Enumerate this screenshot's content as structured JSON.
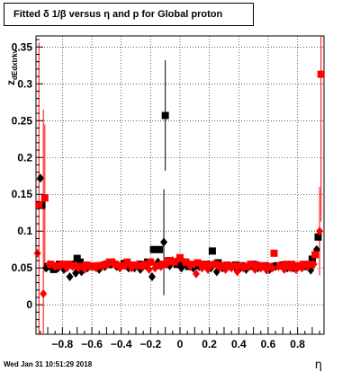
{
  "title": "Fitted δ 1/β versus η and p for Global proton",
  "footer_date": "Wed Jan 31 10:51:29 2018",
  "chart_data": {
    "type": "scatter",
    "xlabel": "η",
    "ylabel": "z",
    "ylabel_subscript": "dEdxtrkv",
    "xlim": [
      -0.98,
      0.98
    ],
    "ylim": [
      -0.04,
      0.365
    ],
    "xticks": [
      -0.8,
      -0.6,
      -0.4,
      -0.2,
      0,
      0.2,
      0.4,
      0.6,
      0.8
    ],
    "xtick_labels": [
      "−0.8",
      "−0.6",
      "−0.4",
      "−0.2",
      "0",
      "0.2",
      "0.4",
      "0.6",
      "0.8"
    ],
    "yticks": [
      0,
      0.05,
      0.1,
      0.15,
      0.2,
      0.25,
      0.3,
      0.35
    ],
    "ytick_labels": [
      "0",
      "0.05",
      "0.1",
      "0.15",
      "0.2",
      "0.25",
      "0.3",
      "0.35"
    ],
    "grid": true,
    "colors": {
      "black": "#000000",
      "red": "#ff0000"
    },
    "series": [
      {
        "marker": "square",
        "color": "#000000",
        "points": [
          [
            -0.94,
            0.135
          ],
          [
            -0.9,
            0.052
          ],
          [
            -0.86,
            0.048
          ],
          [
            -0.82,
            0.055
          ],
          [
            -0.78,
            0.052
          ],
          [
            -0.74,
            0.055
          ],
          [
            -0.7,
            0.063
          ],
          [
            -0.68,
            0.058
          ],
          [
            -0.62,
            0.052
          ],
          [
            -0.58,
            0.052
          ],
          [
            -0.54,
            0.053
          ],
          [
            -0.5,
            0.055
          ],
          [
            -0.46,
            0.055
          ],
          [
            -0.42,
            0.053
          ],
          [
            -0.38,
            0.056
          ],
          [
            -0.34,
            0.053
          ],
          [
            -0.3,
            0.053
          ],
          [
            -0.26,
            0.055
          ],
          [
            -0.22,
            0.058
          ],
          [
            -0.18,
            0.075
          ],
          [
            -0.14,
            0.075
          ],
          [
            -0.1,
            0.257
          ],
          [
            -0.06,
            0.058
          ],
          [
            -0.02,
            0.055
          ],
          [
            0.02,
            0.055
          ],
          [
            0.06,
            0.052
          ],
          [
            0.1,
            0.053
          ],
          [
            0.14,
            0.055
          ],
          [
            0.18,
            0.055
          ],
          [
            0.22,
            0.073
          ],
          [
            0.26,
            0.057
          ],
          [
            0.3,
            0.052
          ],
          [
            0.34,
            0.052
          ],
          [
            0.38,
            0.054
          ],
          [
            0.42,
            0.053
          ],
          [
            0.46,
            0.052
          ],
          [
            0.5,
            0.055
          ],
          [
            0.54,
            0.052
          ],
          [
            0.58,
            0.053
          ],
          [
            0.62,
            0.052
          ],
          [
            0.66,
            0.053
          ],
          [
            0.7,
            0.054
          ],
          [
            0.74,
            0.053
          ],
          [
            0.78,
            0.053
          ],
          [
            0.82,
            0.053
          ],
          [
            0.86,
            0.052
          ],
          [
            0.9,
            0.062
          ],
          [
            0.94,
            0.092
          ]
        ],
        "errors": [
          [
            -0.9,
            0.003
          ],
          [
            -0.1,
            0.075
          ]
        ]
      },
      {
        "marker": "diamond",
        "color": "#000000",
        "points": [
          [
            -0.95,
            0.172
          ],
          [
            -0.91,
            0.05
          ],
          [
            -0.87,
            0.052
          ],
          [
            -0.83,
            0.05
          ],
          [
            -0.79,
            0.048
          ],
          [
            -0.75,
            0.038
          ],
          [
            -0.71,
            0.043
          ],
          [
            -0.67,
            0.045
          ],
          [
            -0.63,
            0.05
          ],
          [
            -0.59,
            0.052
          ],
          [
            -0.55,
            0.048
          ],
          [
            -0.51,
            0.052
          ],
          [
            -0.47,
            0.055
          ],
          [
            -0.43,
            0.052
          ],
          [
            -0.39,
            0.055
          ],
          [
            -0.35,
            0.05
          ],
          [
            -0.31,
            0.05
          ],
          [
            -0.27,
            0.048
          ],
          [
            -0.23,
            0.053
          ],
          [
            -0.19,
            0.038
          ],
          [
            -0.15,
            0.058
          ],
          [
            -0.11,
            0.085
          ],
          [
            -0.07,
            0.053
          ],
          [
            -0.03,
            0.058
          ],
          [
            0.01,
            0.05
          ],
          [
            0.05,
            0.055
          ],
          [
            0.09,
            0.05
          ],
          [
            0.13,
            0.052
          ],
          [
            0.17,
            0.053
          ],
          [
            0.21,
            0.05
          ],
          [
            0.25,
            0.045
          ],
          [
            0.29,
            0.05
          ],
          [
            0.33,
            0.053
          ],
          [
            0.37,
            0.052
          ],
          [
            0.41,
            0.05
          ],
          [
            0.45,
            0.048
          ],
          [
            0.49,
            0.053
          ],
          [
            0.53,
            0.05
          ],
          [
            0.57,
            0.052
          ],
          [
            0.61,
            0.048
          ],
          [
            0.65,
            0.052
          ],
          [
            0.69,
            0.053
          ],
          [
            0.73,
            0.05
          ],
          [
            0.77,
            0.05
          ],
          [
            0.81,
            0.052
          ],
          [
            0.85,
            0.053
          ],
          [
            0.89,
            0.047
          ],
          [
            0.93,
            0.075
          ]
        ],
        "errors": [
          [
            -0.11,
            0.072
          ]
        ]
      },
      {
        "marker": "square",
        "color": "#ff0000",
        "points": [
          [
            -0.96,
            0.136
          ],
          [
            -0.92,
            0.145
          ],
          [
            -0.88,
            0.055
          ],
          [
            -0.84,
            0.053
          ],
          [
            -0.8,
            0.055
          ],
          [
            -0.76,
            0.055
          ],
          [
            -0.72,
            0.053
          ],
          [
            -0.68,
            0.052
          ],
          [
            -0.64,
            0.054
          ],
          [
            -0.6,
            0.052
          ],
          [
            -0.56,
            0.053
          ],
          [
            -0.52,
            0.054
          ],
          [
            -0.48,
            0.058
          ],
          [
            -0.44,
            0.055
          ],
          [
            -0.4,
            0.053
          ],
          [
            -0.36,
            0.058
          ],
          [
            -0.32,
            0.054
          ],
          [
            -0.28,
            0.053
          ],
          [
            -0.24,
            0.055
          ],
          [
            -0.2,
            0.058
          ],
          [
            -0.16,
            0.053
          ],
          [
            -0.12,
            0.055
          ],
          [
            -0.08,
            0.06
          ],
          [
            -0.04,
            0.058
          ],
          [
            0.0,
            0.064
          ],
          [
            0.04,
            0.058
          ],
          [
            0.08,
            0.055
          ],
          [
            0.12,
            0.057
          ],
          [
            0.16,
            0.055
          ],
          [
            0.2,
            0.054
          ],
          [
            0.24,
            0.055
          ],
          [
            0.28,
            0.053
          ],
          [
            0.32,
            0.054
          ],
          [
            0.36,
            0.053
          ],
          [
            0.4,
            0.053
          ],
          [
            0.44,
            0.052
          ],
          [
            0.48,
            0.055
          ],
          [
            0.52,
            0.054
          ],
          [
            0.56,
            0.053
          ],
          [
            0.6,
            0.052
          ],
          [
            0.64,
            0.07
          ],
          [
            0.68,
            0.053
          ],
          [
            0.72,
            0.055
          ],
          [
            0.76,
            0.055
          ],
          [
            0.8,
            0.053
          ],
          [
            0.84,
            0.055
          ],
          [
            0.88,
            0.055
          ],
          [
            0.92,
            0.068
          ],
          [
            0.96,
            0.313
          ]
        ],
        "errors": [
          [
            -0.96,
            0.22
          ],
          [
            -0.92,
            0.1
          ],
          [
            0.96,
            0.2
          ]
        ]
      },
      {
        "marker": "diamond",
        "color": "#ff0000",
        "points": [
          [
            -0.97,
            0.07
          ],
          [
            -0.93,
            0.015
          ],
          [
            -0.89,
            0.055
          ],
          [
            -0.85,
            0.052
          ],
          [
            -0.81,
            0.053
          ],
          [
            -0.77,
            0.05
          ],
          [
            -0.73,
            0.052
          ],
          [
            -0.69,
            0.05
          ],
          [
            -0.65,
            0.048
          ],
          [
            -0.61,
            0.053
          ],
          [
            -0.57,
            0.05
          ],
          [
            -0.53,
            0.052
          ],
          [
            -0.49,
            0.055
          ],
          [
            -0.45,
            0.058
          ],
          [
            -0.41,
            0.05
          ],
          [
            -0.37,
            0.053
          ],
          [
            -0.33,
            0.05
          ],
          [
            -0.29,
            0.055
          ],
          [
            -0.25,
            0.052
          ],
          [
            -0.21,
            0.048
          ],
          [
            -0.17,
            0.05
          ],
          [
            -0.13,
            0.052
          ],
          [
            -0.09,
            0.055
          ],
          [
            -0.05,
            0.06
          ],
          [
            -0.01,
            0.062
          ],
          [
            0.03,
            0.058
          ],
          [
            0.07,
            0.052
          ],
          [
            0.11,
            0.042
          ],
          [
            0.15,
            0.05
          ],
          [
            0.19,
            0.048
          ],
          [
            0.23,
            0.055
          ],
          [
            0.27,
            0.05
          ],
          [
            0.31,
            0.048
          ],
          [
            0.35,
            0.05
          ],
          [
            0.39,
            0.045
          ],
          [
            0.43,
            0.05
          ],
          [
            0.47,
            0.052
          ],
          [
            0.51,
            0.048
          ],
          [
            0.55,
            0.05
          ],
          [
            0.59,
            0.047
          ],
          [
            0.63,
            0.05
          ],
          [
            0.67,
            0.052
          ],
          [
            0.71,
            0.048
          ],
          [
            0.75,
            0.05
          ],
          [
            0.79,
            0.048
          ],
          [
            0.83,
            0.05
          ],
          [
            0.87,
            0.052
          ],
          [
            0.91,
            0.055
          ],
          [
            0.95,
            0.1
          ]
        ],
        "errors": [
          [
            -0.93,
            0.25
          ],
          [
            0.95,
            0.06
          ]
        ]
      }
    ]
  }
}
